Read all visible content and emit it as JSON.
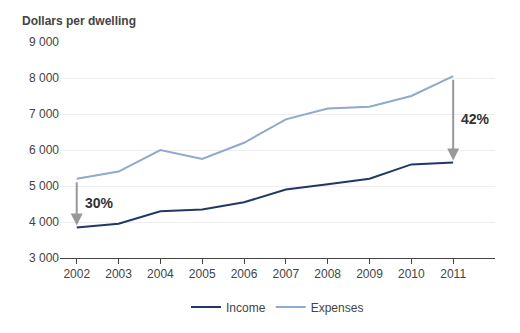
{
  "chart_data": {
    "type": "line",
    "ylabel": "Dollars per dwelling",
    "x": [
      2002,
      2003,
      2004,
      2005,
      2006,
      2007,
      2008,
      2009,
      2010,
      2011
    ],
    "series": [
      {
        "name": "Income",
        "color": "#1f3864",
        "values": [
          3850,
          3950,
          4300,
          4350,
          4550,
          4900,
          5050,
          5200,
          5600,
          5650
        ]
      },
      {
        "name": "Expenses",
        "color": "#8eaacc",
        "values": [
          5200,
          5400,
          6000,
          5750,
          6200,
          6850,
          7150,
          7200,
          7500,
          8050
        ]
      }
    ],
    "xlim": [
      2001.6,
      2012.0
    ],
    "xticks": [
      2002,
      2003,
      2004,
      2005,
      2006,
      2007,
      2008,
      2009,
      2010,
      2011
    ],
    "ylim": [
      3000,
      9000
    ],
    "yticks": [
      {
        "value": 3000,
        "label": "3 000"
      },
      {
        "value": 4000,
        "label": "4 000"
      },
      {
        "value": 5000,
        "label": "5 000"
      },
      {
        "value": 6000,
        "label": "6 000"
      },
      {
        "value": 7000,
        "label": "7 000"
      },
      {
        "value": 8000,
        "label": "8 000"
      },
      {
        "value": 9000,
        "label": "9 000"
      }
    ],
    "annotations": [
      {
        "text": "30%",
        "x": 2002
      },
      {
        "text": "42%",
        "x": 2011
      }
    ],
    "grid": true,
    "legend": "bottom"
  }
}
